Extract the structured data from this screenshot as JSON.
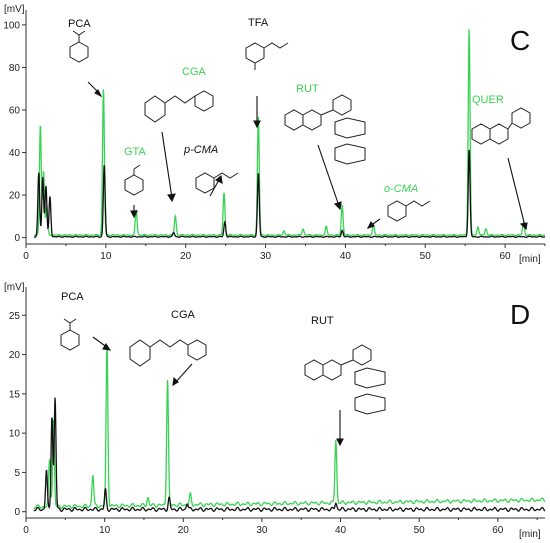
{
  "colors": {
    "black_trace": "#111111",
    "green_trace": "#39d353",
    "axis": "#333333"
  },
  "chart_data": [
    {
      "type": "line",
      "panel": "C",
      "y_unit": "[mV]",
      "x_unit": "[min]",
      "xlim": [
        0,
        65
      ],
      "ylim": [
        -3,
        107
      ],
      "x_ticks": [
        0,
        10,
        20,
        30,
        40,
        50,
        60
      ],
      "y_ticks": [
        0,
        20,
        40,
        60,
        80,
        100
      ],
      "grid": false,
      "series": [
        {
          "color": "green",
          "baseline": 1.2,
          "peaks": [
            [
              1.8,
              52
            ],
            [
              2.2,
              30
            ],
            [
              2.6,
              14
            ],
            [
              9.7,
              69
            ],
            [
              13.8,
              12
            ],
            [
              18.7,
              9
            ],
            [
              24.8,
              20
            ],
            [
              29.1,
              56
            ],
            [
              32.3,
              2
            ],
            [
              34.7,
              3
            ],
            [
              37.6,
              4
            ],
            [
              39.6,
              14
            ],
            [
              43.5,
              5
            ],
            [
              55.5,
              97
            ],
            [
              56.6,
              4
            ],
            [
              57.6,
              3
            ],
            [
              62.3,
              6
            ]
          ]
        },
        {
          "color": "black",
          "baseline": 0.4,
          "peaks": [
            [
              1.6,
              30
            ],
            [
              2.1,
              28
            ],
            [
              2.5,
              24
            ],
            [
              3.0,
              19
            ],
            [
              9.8,
              34
            ],
            [
              18.5,
              2
            ],
            [
              24.9,
              7
            ],
            [
              29.1,
              30
            ],
            [
              39.6,
              3
            ],
            [
              55.5,
              41
            ]
          ]
        }
      ],
      "annotations": [
        {
          "text": "PCA",
          "color": "black",
          "x": 9.7
        },
        {
          "text": "GTA",
          "color": "green",
          "x": 13.8
        },
        {
          "text": "CGA",
          "color": "green",
          "x": 18.7
        },
        {
          "text": "p-CMA",
          "color": "black",
          "x": 24.8
        },
        {
          "text": "TFA",
          "color": "black",
          "x": 29.1
        },
        {
          "text": "RUT",
          "color": "green",
          "x": 39.6
        },
        {
          "text": "o-CMA",
          "color": "green",
          "x": 43.5
        },
        {
          "text": "QUER",
          "color": "green",
          "x": 62.3
        }
      ]
    },
    {
      "type": "line",
      "panel": "D",
      "y_unit": "[mV]",
      "x_unit": "[min]",
      "xlim": [
        0,
        66
      ],
      "ylim": [
        -0.8,
        28.6
      ],
      "x_ticks": [
        0,
        10,
        20,
        30,
        40,
        50,
        60
      ],
      "y_ticks": [
        0,
        5,
        10,
        15,
        20,
        25
      ],
      "grid": false,
      "series": [
        {
          "color": "green",
          "baseline": 0.6,
          "peaks": [
            [
              3.0,
              6
            ],
            [
              3.5,
              11
            ],
            [
              8.5,
              4
            ],
            [
              10.3,
              20.6
            ],
            [
              15.5,
              1
            ],
            [
              18.0,
              16.1
            ],
            [
              20.9,
              1.3
            ],
            [
              39.4,
              8.1
            ]
          ]
        },
        {
          "color": "black",
          "baseline": 0.3,
          "peaks": [
            [
              2.6,
              5
            ],
            [
              3.3,
              12
            ],
            [
              3.7,
              14.2
            ],
            [
              10.1,
              2.5
            ],
            [
              18.2,
              1.4
            ],
            [
              20.5,
              0.8
            ],
            [
              39.4,
              0.9
            ]
          ]
        }
      ],
      "annotations": [
        {
          "text": "PCA",
          "color": "black",
          "x": 10.3
        },
        {
          "text": "CGA",
          "color": "black",
          "x": 18.0
        },
        {
          "text": "RUT",
          "color": "black",
          "x": 39.4
        }
      ]
    }
  ]
}
